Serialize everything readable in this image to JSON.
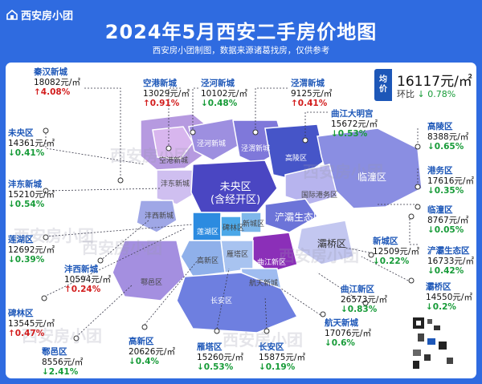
{
  "brand": "西安房小团",
  "title": "2024年5月西安二手房价地图",
  "subtitle": "西安房小团制图，数据来源诸葛找房，仅供参考",
  "average": {
    "badge_line1": "均",
    "badge_line2": "价",
    "price": "16117元/㎡",
    "change_label": "环比",
    "change_value": "↓ 0.78%"
  },
  "areas": [
    {
      "id": "qinhan",
      "name": "秦汉新城",
      "price": "18082元/㎡",
      "change": "↑4.08%",
      "dir": "up"
    },
    {
      "id": "konggang",
      "name": "空港新城",
      "price": "13029元/㎡",
      "change": "↑0.91%",
      "dir": "up"
    },
    {
      "id": "jinghe",
      "name": "泾河新城",
      "price": "10102元/㎡",
      "change": "↓0.48%",
      "dir": "dn"
    },
    {
      "id": "jingwei",
      "name": "泾渭新城",
      "price": "9125元/㎡",
      "change": "↑0.41%",
      "dir": "up"
    },
    {
      "id": "qujiang_dm",
      "name": "曲江大明宫",
      "price": "15672元/㎡",
      "change": "↓0.53%",
      "dir": "dn"
    },
    {
      "id": "gaoling",
      "name": "高陵区",
      "price": "8388元/㎡",
      "change": "↓0.65%",
      "dir": "dn"
    },
    {
      "id": "gangwu",
      "name": "港务区",
      "price": "17616元/㎡",
      "change": "↓0.35%",
      "dir": "dn"
    },
    {
      "id": "lintong",
      "name": "临潼区",
      "price": "8767元/㎡",
      "change": "↓0.05%",
      "dir": "dn"
    },
    {
      "id": "chanba",
      "name": "浐灞生态区",
      "price": "16733元/㎡",
      "change": "↓0.42%",
      "dir": "dn"
    },
    {
      "id": "baqiao",
      "name": "灞桥区",
      "price": "14550元/㎡",
      "change": "↓0.2%",
      "dir": "dn"
    },
    {
      "id": "xincheng",
      "name": "新城区",
      "price": "12509元/㎡",
      "change": "↓0.22%",
      "dir": "dn"
    },
    {
      "id": "qujiang_xq",
      "name": "曲江新区",
      "price": "26573元/㎡",
      "change": "↓0.83%",
      "dir": "dn"
    },
    {
      "id": "hangtian",
      "name": "航天新城",
      "price": "17076元/㎡",
      "change": "↓0.6%",
      "dir": "dn"
    },
    {
      "id": "changan",
      "name": "长安区",
      "price": "15875元/㎡",
      "change": "↓0.19%",
      "dir": "dn"
    },
    {
      "id": "yanta",
      "name": "雁塔区",
      "price": "15260元/㎡",
      "change": "↓0.53%",
      "dir": "dn"
    },
    {
      "id": "gaoxin",
      "name": "高新区",
      "price": "20626元/㎡",
      "change": "↓0.4%",
      "dir": "dn"
    },
    {
      "id": "huyi",
      "name": "鄠邑区",
      "price": "8556元/㎡",
      "change": "↓2.41%",
      "dir": "dn"
    },
    {
      "id": "beilin",
      "name": "碑林区",
      "price": "13545元/㎡",
      "change": "↑0.47%",
      "dir": "up"
    },
    {
      "id": "fengxi",
      "name": "沣西新城",
      "price": "10594元/㎡",
      "change": "↑0.24%",
      "dir": "up"
    },
    {
      "id": "lianhu",
      "name": "莲湖区",
      "price": "12692元/㎡",
      "change": "↓0.39%",
      "dir": "dn"
    },
    {
      "id": "fengdong",
      "name": "沣东新城",
      "price": "15210元/㎡",
      "change": "↓0.54%",
      "dir": "dn"
    },
    {
      "id": "weiyang",
      "name": "未央区",
      "price": "14361元/㎡",
      "change": "↓0.41%",
      "dir": "dn"
    }
  ],
  "map_labels": {
    "weiyang_main1": "未央区",
    "weiyang_main2": "(含经开区)",
    "lintong": "临潼区",
    "gaoling": "高陵区",
    "chanba": "浐灞生态区",
    "baqiao": "灞桥区",
    "gangwu": "国际港务区",
    "qujiang": "曲江新区",
    "hangtian": "航天新城",
    "changan": "长安区",
    "huyi": "鄠邑区",
    "gaoxin": "高新区",
    "lianhu": "莲湖区",
    "beilin": "碑林区",
    "xincheng": "新城区",
    "yanta": "雁塔区",
    "jingwei": "泾渭新城",
    "jinghe": "泾河新城",
    "konggang": "空港新城",
    "qinhan": "秦汉新城",
    "fengxi": "沣西新城",
    "fengdong": "沣东新城"
  },
  "watermark": "西安房小团",
  "colors": {
    "header": "#2f6be0",
    "up": "#d21c1c",
    "down": "#179b38",
    "name": "#1d57b8"
  }
}
